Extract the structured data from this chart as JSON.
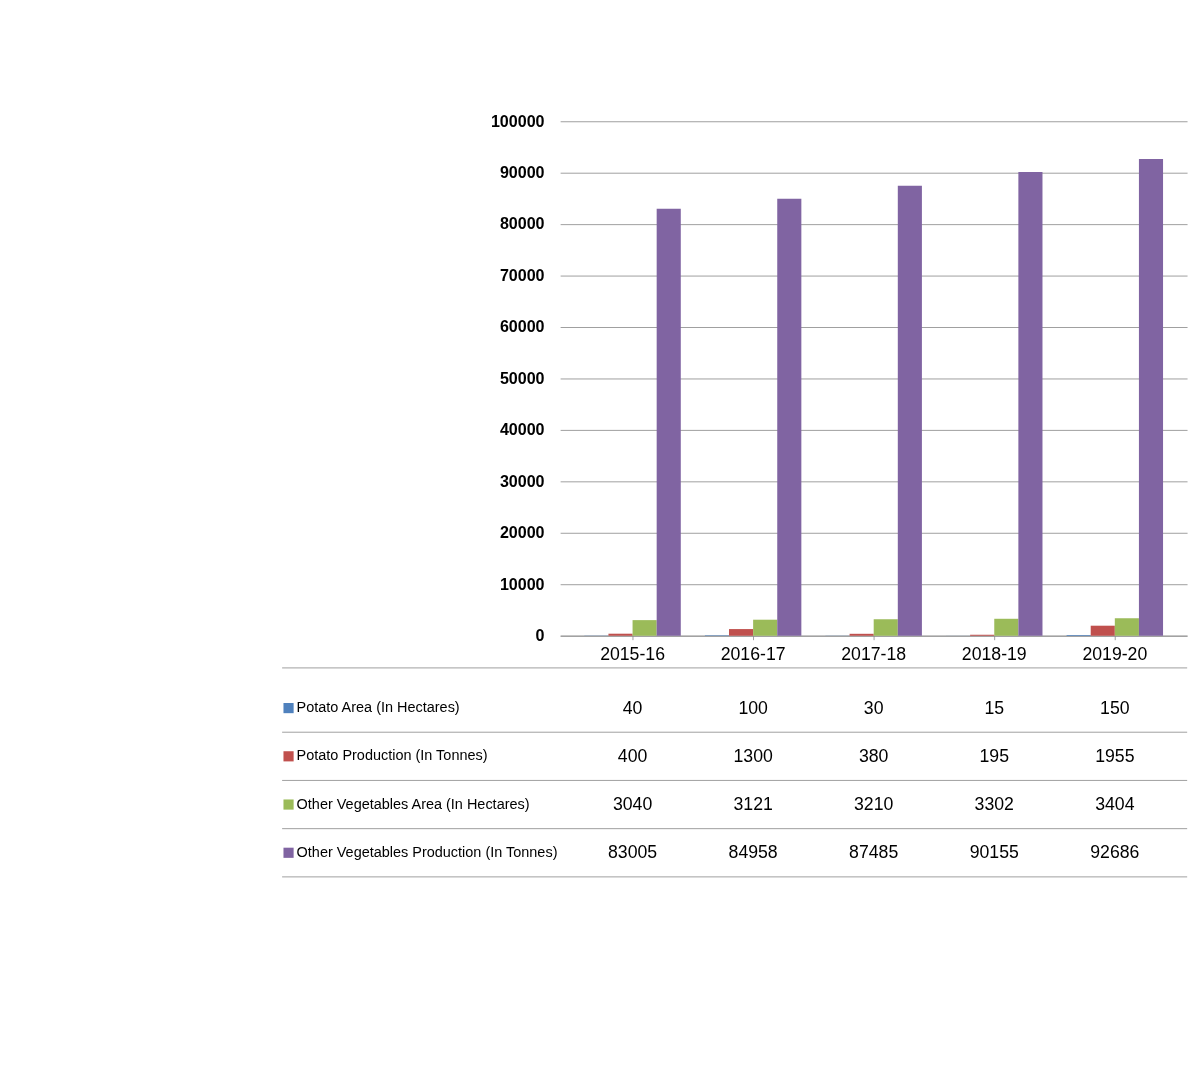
{
  "chart_data": {
    "type": "bar",
    "categories": [
      "2015-16",
      "2016-17",
      "2017-18",
      "2018-19",
      "2019-20"
    ],
    "series": [
      {
        "name": "Potato Area (In Hectares)",
        "color": "#4f81bd",
        "values": [
          40,
          100,
          30,
          15,
          150
        ]
      },
      {
        "name": "Potato Production (In Tonnes)",
        "color": "#c0504d",
        "values": [
          400,
          1300,
          380,
          195,
          1955
        ]
      },
      {
        "name": "Other Vegetables Area (In Hectares)",
        "color": "#9bbb59",
        "values": [
          3040,
          3121,
          3210,
          3302,
          3404
        ]
      },
      {
        "name": "Other Vegetables Production (In Tonnes)",
        "color": "#8064a2",
        "values": [
          83005,
          84958,
          87485,
          90155,
          92686
        ]
      }
    ],
    "ylim": [
      0,
      100000
    ],
    "yticks": [
      0,
      10000,
      20000,
      30000,
      40000,
      50000,
      60000,
      70000,
      80000,
      90000,
      100000
    ],
    "grid": "y",
    "legend": "bottom",
    "data_labels": true
  }
}
